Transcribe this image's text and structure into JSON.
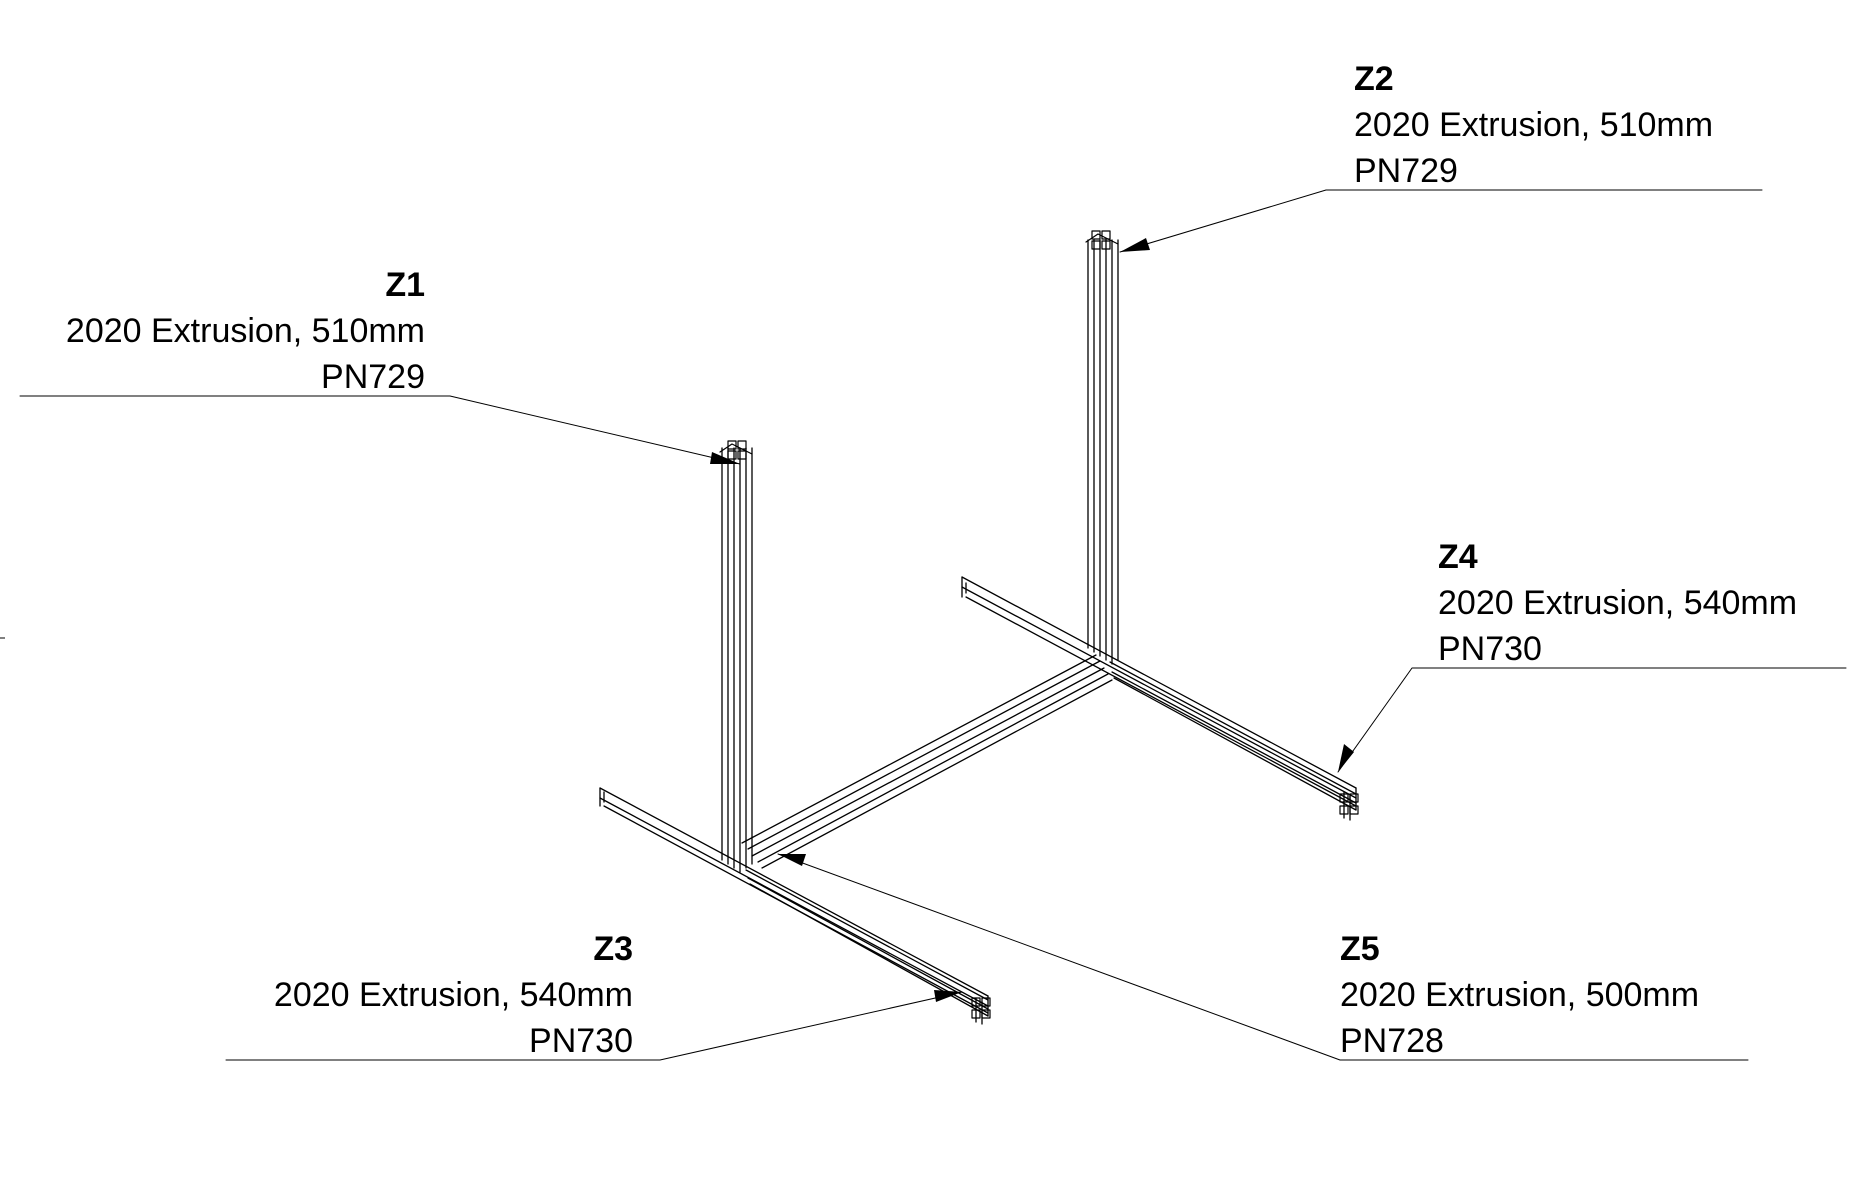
{
  "callouts": [
    {
      "id": "Z1",
      "description": "2020 Extrusion, 510mm",
      "part_number": "PN729"
    },
    {
      "id": "Z2",
      "description": "2020 Extrusion, 510mm",
      "part_number": "PN729"
    },
    {
      "id": "Z3",
      "description": "2020 Extrusion, 540mm",
      "part_number": "PN730"
    },
    {
      "id": "Z4",
      "description": "2020 Extrusion, 540mm",
      "part_number": "PN730"
    },
    {
      "id": "Z5",
      "description": "2020 Extrusion, 500mm",
      "part_number": "PN728"
    }
  ]
}
